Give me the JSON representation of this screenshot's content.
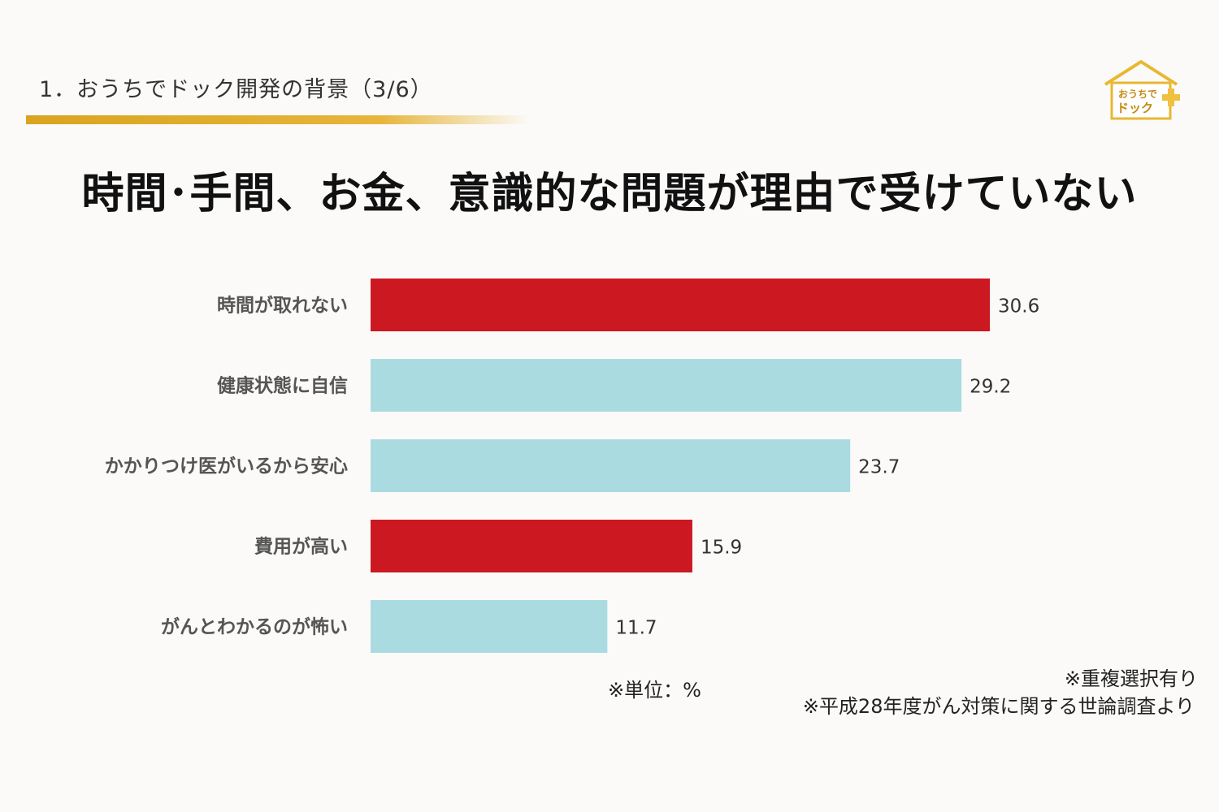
{
  "slide": {
    "title": "1．おうちでドック開発の背景（3/6）",
    "headline": "時間･手間、お金、意識的な問題が理由で受けていない",
    "logo_text_top": "おうちで",
    "logo_text_bottom": "ドック"
  },
  "notes": {
    "unit": "※単位：%",
    "duplicate": "※重複選択有り",
    "source": "※平成28年度がん対策に関する世論調査より"
  },
  "colors": {
    "red": "#cc1820",
    "cyan": "#a9dbe1",
    "gold": "#d9a420"
  },
  "chart_data": {
    "type": "bar",
    "orientation": "horizontal",
    "categories": [
      "時間が取れない",
      "健康状態に自信",
      "かかりつけ医がいるから安心",
      "費用が高い",
      "がんとわかるのが怖い"
    ],
    "values": [
      30.6,
      29.2,
      23.7,
      15.9,
      11.7
    ],
    "value_labels": [
      "30.6",
      "29.2",
      "23.7",
      "15.9",
      "11.7"
    ],
    "bar_colors": [
      "#cc1820",
      "#a9dbe1",
      "#a9dbe1",
      "#cc1820",
      "#a9dbe1"
    ],
    "xlim": [
      0,
      30.6
    ],
    "grid": false
  }
}
